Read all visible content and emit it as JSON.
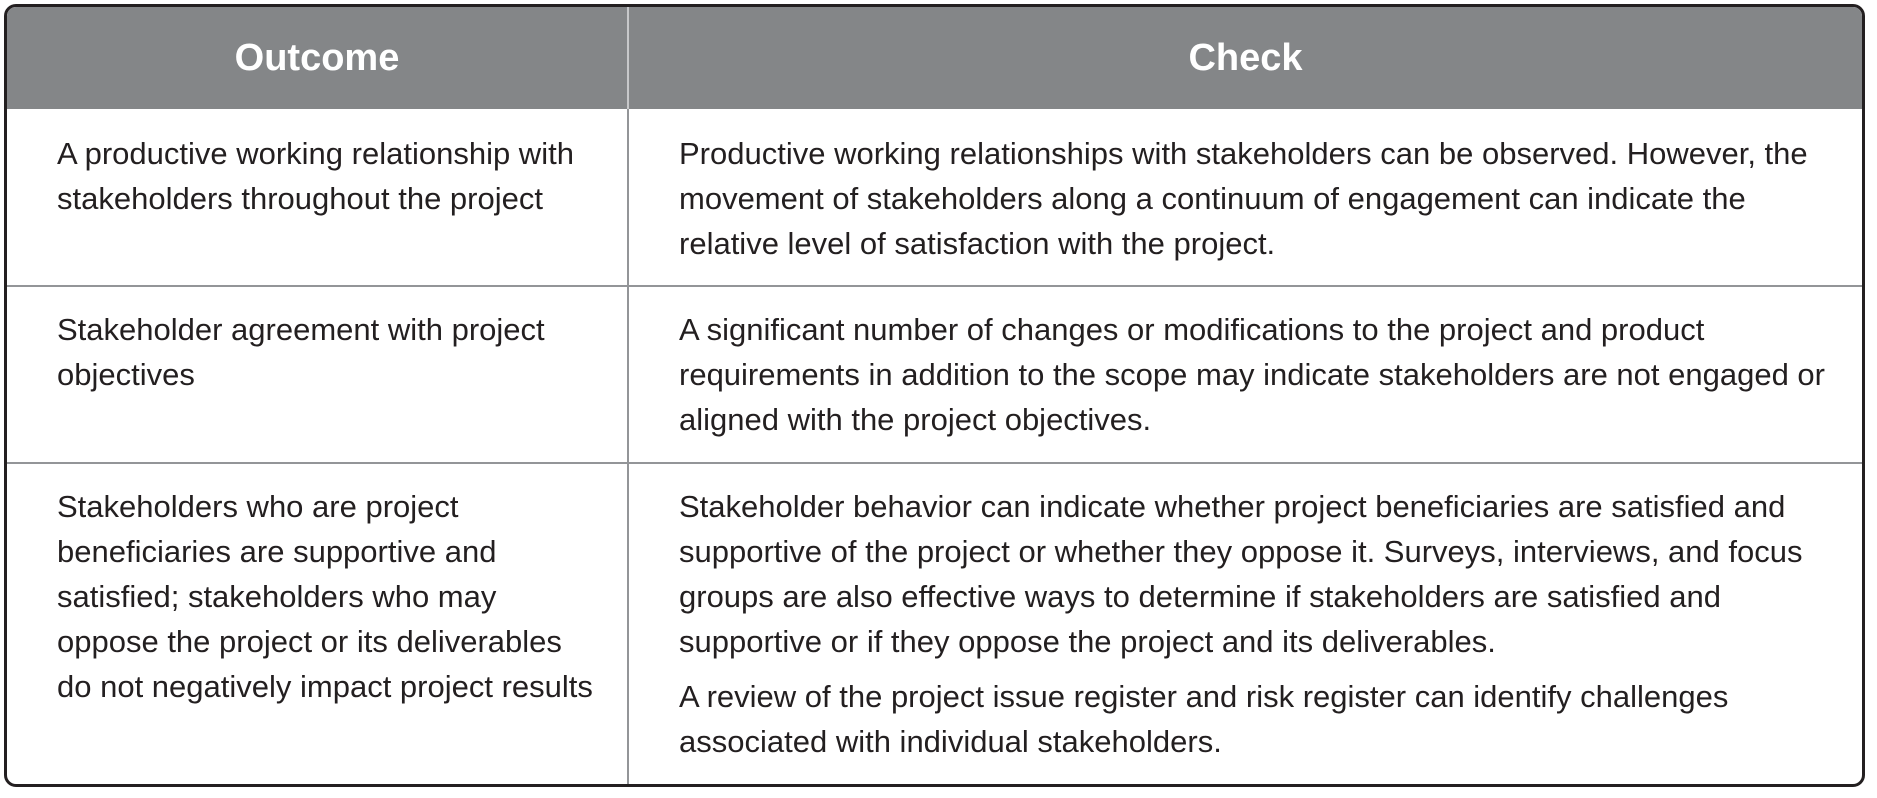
{
  "table": {
    "headers": {
      "outcome": "Outcome",
      "check": "Check"
    },
    "rows": [
      {
        "outcome": "A productive working relationship with stakeholders throughout the project",
        "check": [
          "Productive working relationships with stakeholders can be observed. However, the movement of stakeholders along a continuum of engagement can indicate the relative level of satisfaction with the project."
        ]
      },
      {
        "outcome": "Stakeholder agreement with project objectives",
        "check": [
          "A significant number of changes or modifications to the project and product requirements in addition to the scope may indicate stakeholders are not engaged or aligned with the project objectives."
        ]
      },
      {
        "outcome": "Stakeholders who are project beneficiaries are supportive and satisfied; stakeholders who may oppose the project or its deliverables do not negatively impact project results",
        "check": [
          "Stakeholder behavior can indicate whether project beneficiaries are satisfied and supportive of the project or whether they oppose it. Surveys, interviews, and focus groups are also effective ways to determine if stakeholders are satisfied and supportive or if they oppose the project and its deliverables.",
          "A review of the project issue register and risk register can identify challenges associated with individual stakeholders."
        ]
      }
    ],
    "colors": {
      "header_bg": "#848688",
      "header_text": "#ffffff",
      "border": "#231f20",
      "rule": "#939598",
      "body_text": "#231f20"
    }
  }
}
